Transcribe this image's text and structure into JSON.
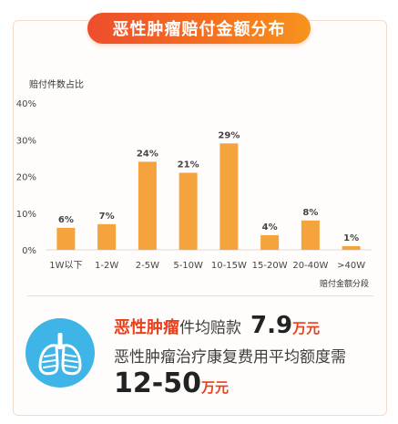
{
  "header": {
    "title": "恶性肿瘤赔付金额分布"
  },
  "chart_data": {
    "type": "bar",
    "ylabel": "赔付件数占比",
    "xlabel": "赔付金额分段",
    "categories": [
      "1W以下",
      "1-2W",
      "2-5W",
      "5-10W",
      "10-15W",
      "15-20W",
      "20-40W",
      ">40W"
    ],
    "values": [
      6,
      7,
      24,
      21,
      29,
      4,
      8,
      1
    ],
    "value_labels": [
      "6%",
      "7%",
      "24%",
      "21%",
      "29%",
      "4%",
      "8%",
      "1%"
    ],
    "yticks": [
      "0%",
      "10%",
      "20%",
      "30%",
      "40%"
    ],
    "ylim": [
      0,
      40
    ],
    "grid": false,
    "bar_color": "#f5a33c"
  },
  "summary": {
    "disease": "恶性肿瘤",
    "avg_label": "件均赔款",
    "avg_value": "7.9",
    "avg_unit": "万元",
    "line2": "恶性肿瘤治疗康复费用平均额度需",
    "range_value": "12-50",
    "range_unit": "万元",
    "icon": "lungs-icon",
    "icon_bg": "#3fb4e6"
  },
  "colors": {
    "accent": "#ee4d2d",
    "accent2": "#f7931e",
    "bar": "#f5a33c"
  }
}
